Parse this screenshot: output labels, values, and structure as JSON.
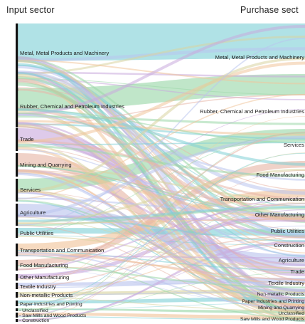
{
  "headers": {
    "input": "Input sector",
    "purchase": "Purchase sect"
  },
  "colors": {
    "node": "#111111",
    "flow_palette": [
      "#7fd0d6",
      "#9ad7a8",
      "#c9a9dd",
      "#e7b7a7",
      "#f0c49a",
      "#b9c4ee",
      "#d9d4a0"
    ]
  },
  "input_sectors": [
    {
      "label": "Metal, Metal Products and Machinery"
    },
    {
      "label": "Rubber, Chemical and Petroleum Industries"
    },
    {
      "label": "Trade"
    },
    {
      "label": "Mining and Quarrying"
    },
    {
      "label": "Services"
    },
    {
      "label": "Agriculture"
    },
    {
      "label": "Public Utilities"
    },
    {
      "label": "Transportation and Communication"
    },
    {
      "label": "Food Manufacturing"
    },
    {
      "label": "Other Manufacturing"
    },
    {
      "label": "Textile Industry"
    },
    {
      "label": "Non-metallic Products"
    },
    {
      "label": "Paper Industries and Printing"
    },
    {
      "label": "Unclassified"
    },
    {
      "label": "Saw Mills and Wood Products"
    },
    {
      "label": "Construction"
    }
  ],
  "purchase_sectors": [
    {
      "label": "Metal, Metal Products and Machinery"
    },
    {
      "label": "Rubber, Chemical and Petroleum Industries"
    },
    {
      "label": "Services"
    },
    {
      "label": "Food Manufacturing"
    },
    {
      "label": "Transportation and Communication"
    },
    {
      "label": "Other Manufacturing"
    },
    {
      "label": "Public Utilities"
    },
    {
      "label": "Construction"
    },
    {
      "label": "Agriculture"
    },
    {
      "label": "Trade"
    },
    {
      "label": "Textile Industry"
    },
    {
      "label": "Non-metallic Products"
    },
    {
      "label": "Paper Industries and Printing"
    },
    {
      "label": "Mining and Quarrying"
    },
    {
      "label": "Unclassified"
    },
    {
      "label": "Saw Mills and Wood Products"
    }
  ]
}
